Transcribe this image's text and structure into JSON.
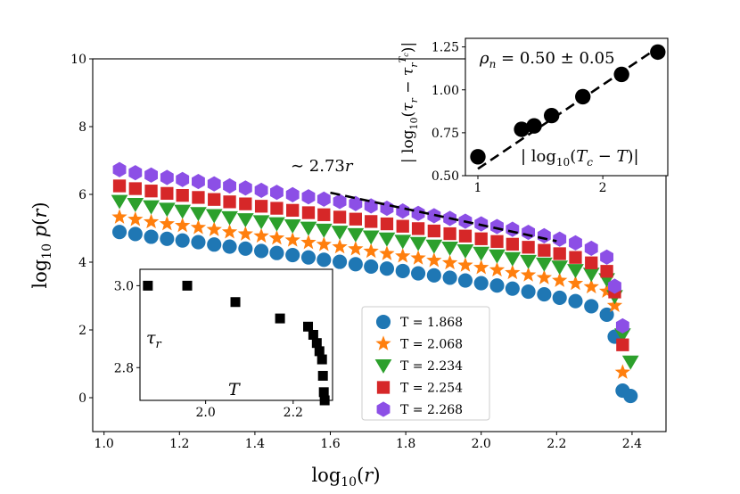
{
  "chart_data": [
    {
      "type": "scatter",
      "xlabel": "log10(r)",
      "ylabel": "log10 p(r)",
      "xlim": [
        0.97,
        2.49
      ],
      "ylim": [
        -1.0,
        10.0
      ],
      "xticks": [
        1.0,
        1.2,
        1.4,
        1.6,
        1.8,
        2.0,
        2.2,
        2.4
      ],
      "xtick_labels": [
        "1.0",
        "1.2",
        "1.4",
        "1.6",
        "1.8",
        "2.0",
        "2.2",
        "2.4"
      ],
      "yticks": [
        0,
        2,
        4,
        6,
        8,
        10
      ],
      "ytick_labels": [
        "0",
        "2",
        "4",
        "6",
        "8",
        "10"
      ],
      "annotation": {
        "text": "~ 2.73r",
        "line": {
          "x0": 1.6,
          "y0": 6.05,
          "x1": 2.2,
          "y1": 4.62
        }
      },
      "legend_position": "lower-right",
      "x": [
        1.041,
        1.083,
        1.125,
        1.167,
        1.208,
        1.25,
        1.292,
        1.333,
        1.375,
        1.417,
        1.458,
        1.5,
        1.542,
        1.583,
        1.625,
        1.667,
        1.708,
        1.75,
        1.792,
        1.833,
        1.875,
        1.917,
        1.958,
        2.0,
        2.042,
        2.083,
        2.125,
        2.167,
        2.208,
        2.25,
        2.292,
        2.333
      ],
      "series": [
        {
          "name": "T = 1.868",
          "marker": "circle",
          "color": "#1f77b4",
          "values": [
            4.89,
            4.83,
            4.75,
            4.69,
            4.64,
            4.59,
            4.52,
            4.46,
            4.4,
            4.33,
            4.27,
            4.21,
            4.14,
            4.07,
            4.01,
            3.94,
            3.87,
            3.81,
            3.74,
            3.67,
            3.61,
            3.54,
            3.46,
            3.38,
            3.31,
            3.22,
            3.13,
            3.05,
            2.95,
            2.85,
            2.7,
            2.45
          ],
          "tail_x": [
            2.354,
            2.375,
            2.396
          ],
          "tail_values": [
            1.8,
            0.21,
            0.05
          ]
        },
        {
          "name": "T = 2.068",
          "marker": "star",
          "color": "#ff7f0e",
          "values": [
            5.33,
            5.26,
            5.19,
            5.13,
            5.08,
            5.02,
            4.96,
            4.89,
            4.83,
            4.77,
            4.71,
            4.65,
            4.58,
            4.52,
            4.45,
            4.39,
            4.32,
            4.25,
            4.18,
            4.12,
            4.05,
            3.98,
            3.91,
            3.84,
            3.77,
            3.69,
            3.62,
            3.54,
            3.46,
            3.37,
            3.27,
            3.14
          ],
          "tail_x": [
            2.354,
            2.375
          ],
          "tail_values": [
            2.72,
            0.75
          ]
        },
        {
          "name": "T = 2.234",
          "marker": "triangle",
          "color": "#2ca02c",
          "values": [
            5.8,
            5.71,
            5.64,
            5.57,
            5.51,
            5.44,
            5.38,
            5.32,
            5.26,
            5.2,
            5.14,
            5.08,
            5.01,
            4.95,
            4.89,
            4.82,
            4.75,
            4.69,
            4.62,
            4.56,
            4.48,
            4.42,
            4.34,
            4.27,
            4.19,
            4.11,
            4.03,
            3.95,
            3.86,
            3.76,
            3.65,
            3.49
          ],
          "tail_x": [
            2.354,
            2.375,
            2.396
          ],
          "tail_values": [
            2.99,
            1.86,
            1.06
          ]
        },
        {
          "name": "T = 2.254",
          "marker": "square",
          "color": "#d62728",
          "values": [
            6.25,
            6.17,
            6.1,
            6.03,
            5.97,
            5.91,
            5.85,
            5.78,
            5.72,
            5.65,
            5.59,
            5.53,
            5.46,
            5.4,
            5.33,
            5.27,
            5.2,
            5.13,
            5.06,
            4.99,
            4.92,
            4.84,
            4.77,
            4.69,
            4.61,
            4.53,
            4.44,
            4.35,
            4.25,
            4.14,
            3.98,
            3.73
          ],
          "tail_x": [
            2.354,
            2.375
          ],
          "tail_values": [
            3.12,
            1.56
          ]
        },
        {
          "name": "T = 2.268",
          "marker": "hexagon",
          "color": "#8c4fe6",
          "values": [
            6.73,
            6.64,
            6.57,
            6.5,
            6.44,
            6.38,
            6.31,
            6.25,
            6.19,
            6.12,
            6.06,
            5.99,
            5.93,
            5.86,
            5.79,
            5.73,
            5.66,
            5.59,
            5.51,
            5.44,
            5.37,
            5.29,
            5.21,
            5.13,
            5.05,
            4.97,
            4.88,
            4.78,
            4.68,
            4.57,
            4.41,
            4.15
          ],
          "tail_x": [
            2.354,
            2.375
          ],
          "tail_values": [
            3.29,
            2.12
          ]
        }
      ]
    },
    {
      "type": "scatter",
      "position": "inset-top-right",
      "xlabel": "|log10(Tc − T)|",
      "ylabel": "|log10(τr − τr^Tc)|",
      "xlim": [
        0.9,
        2.52
      ],
      "ylim": [
        0.5,
        1.3
      ],
      "xticks": [
        1,
        2
      ],
      "xtick_labels": [
        "1",
        "2"
      ],
      "yticks": [
        0.5,
        0.75,
        1.0,
        1.25
      ],
      "ytick_labels": [
        "0.50",
        "0.75",
        "1.00",
        "1.25"
      ],
      "annotation": "ρn = 0.50 ± 0.05",
      "fit_line": {
        "x": [
          1.0,
          2.45
        ],
        "y": [
          0.54,
          1.25
        ]
      },
      "x": [
        1.0,
        1.35,
        1.45,
        1.59,
        1.84,
        2.15,
        2.44
      ],
      "values": [
        0.61,
        0.77,
        0.79,
        0.85,
        0.96,
        1.09,
        1.22
      ]
    },
    {
      "type": "scatter",
      "position": "inset-bottom-left",
      "xlabel": "T",
      "ylabel": "τr",
      "xlim": [
        1.85,
        2.29
      ],
      "ylim": [
        2.72,
        3.04
      ],
      "xticks": [
        2.0,
        2.2
      ],
      "xtick_labels": [
        "2.0",
        "2.2"
      ],
      "yticks": [
        2.8,
        3.0
      ],
      "ytick_labels": [
        "2.8",
        "3.0"
      ],
      "x": [
        1.868,
        1.958,
        2.068,
        2.17,
        2.234,
        2.246,
        2.254,
        2.26,
        2.266,
        2.268,
        2.27,
        2.272
      ],
      "values": [
        3.0,
        3.0,
        2.96,
        2.92,
        2.9,
        2.88,
        2.86,
        2.84,
        2.82,
        2.78,
        2.74,
        2.72
      ]
    }
  ]
}
